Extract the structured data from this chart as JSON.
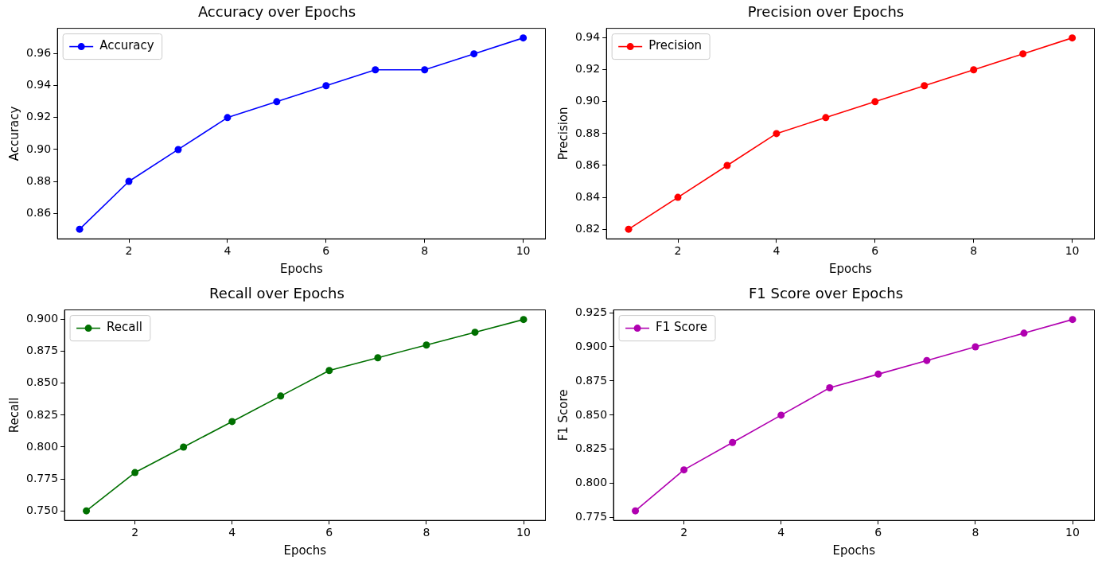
{
  "chart_data": [
    {
      "type": "line",
      "title": "Accuracy over Epochs",
      "xlabel": "Epochs",
      "ylabel": "Accuracy",
      "x": [
        1,
        2,
        3,
        4,
        5,
        6,
        7,
        8,
        9,
        10
      ],
      "xlim": [
        0.55,
        10.45
      ],
      "xticks": [
        2,
        4,
        6,
        8,
        10
      ],
      "ylim": [
        0.844,
        0.976
      ],
      "yticks": [
        0.86,
        0.88,
        {
          "value": 0.9,
          "label": "0.90"
        },
        0.92,
        0.94,
        0.96
      ],
      "marker": "circle",
      "legend": "top left",
      "grid": false,
      "series": [
        {
          "name": "Accuracy",
          "color": "#0000ff",
          "values": [
            0.85,
            0.88,
            0.9,
            0.92,
            0.93,
            0.94,
            0.95,
            0.95,
            0.96,
            0.97
          ]
        }
      ]
    },
    {
      "type": "line",
      "title": "Precision over Epochs",
      "xlabel": "Epochs",
      "ylabel": "Precision",
      "x": [
        1,
        2,
        3,
        4,
        5,
        6,
        7,
        8,
        9,
        10
      ],
      "xlim": [
        0.55,
        10.45
      ],
      "xticks": [
        2,
        4,
        6,
        8,
        10
      ],
      "ylim": [
        0.814,
        0.946
      ],
      "yticks": [
        {
          "value": 0.82,
          "label": "0.82"
        },
        {
          "value": 0.84,
          "label": "0.84"
        },
        {
          "value": 0.86,
          "label": "0.86"
        },
        {
          "value": 0.88,
          "label": "0.88"
        },
        {
          "value": 0.9,
          "label": "0.90"
        },
        {
          "value": 0.92,
          "label": "0.92"
        },
        {
          "value": 0.94,
          "label": "0.94"
        }
      ],
      "marker": "circle",
      "legend": "top left",
      "grid": false,
      "series": [
        {
          "name": "Precision",
          "color": "#ff0000",
          "values": [
            0.82,
            0.84,
            0.86,
            0.88,
            0.89,
            0.9,
            0.91,
            0.92,
            0.93,
            0.94
          ]
        }
      ]
    },
    {
      "type": "line",
      "title": "Recall over Epochs",
      "xlabel": "Epochs",
      "ylabel": "Recall",
      "x": [
        1,
        2,
        3,
        4,
        5,
        6,
        7,
        8,
        9,
        10
      ],
      "xlim": [
        0.55,
        10.45
      ],
      "xticks": [
        2,
        4,
        6,
        8,
        10
      ],
      "ylim": [
        0.7425,
        0.9075
      ],
      "yticks": [
        {
          "value": 0.75,
          "label": "0.750"
        },
        {
          "value": 0.775,
          "label": "0.775"
        },
        {
          "value": 0.8,
          "label": "0.800"
        },
        {
          "value": 0.825,
          "label": "0.825"
        },
        {
          "value": 0.85,
          "label": "0.850"
        },
        {
          "value": 0.875,
          "label": "0.875"
        },
        {
          "value": 0.9,
          "label": "0.900"
        }
      ],
      "marker": "circle",
      "legend": "top left",
      "grid": false,
      "series": [
        {
          "name": "Recall",
          "color": "#007000",
          "values": [
            0.75,
            0.78,
            0.8,
            0.82,
            0.84,
            0.86,
            0.87,
            0.88,
            0.89,
            0.9
          ]
        }
      ]
    },
    {
      "type": "line",
      "title": "F1 Score over Epochs",
      "xlabel": "Epochs",
      "ylabel": "F1 Score",
      "x": [
        1,
        2,
        3,
        4,
        5,
        6,
        7,
        8,
        9,
        10
      ],
      "xlim": [
        0.55,
        10.45
      ],
      "xticks": [
        2,
        4,
        6,
        8,
        10
      ],
      "ylim": [
        0.773,
        0.927
      ],
      "yticks": [
        {
          "value": 0.775,
          "label": "0.775"
        },
        {
          "value": 0.8,
          "label": "0.800"
        },
        {
          "value": 0.825,
          "label": "0.825"
        },
        {
          "value": 0.85,
          "label": "0.850"
        },
        {
          "value": 0.875,
          "label": "0.875"
        },
        {
          "value": 0.9,
          "label": "0.900"
        },
        {
          "value": 0.925,
          "label": "0.925"
        }
      ],
      "marker": "circle",
      "legend": "top left",
      "grid": false,
      "series": [
        {
          "name": "F1 Score",
          "color": "#b000b0",
          "values": [
            0.78,
            0.81,
            0.83,
            0.85,
            0.87,
            0.88,
            0.89,
            0.9,
            0.91,
            0.92
          ]
        }
      ]
    }
  ]
}
